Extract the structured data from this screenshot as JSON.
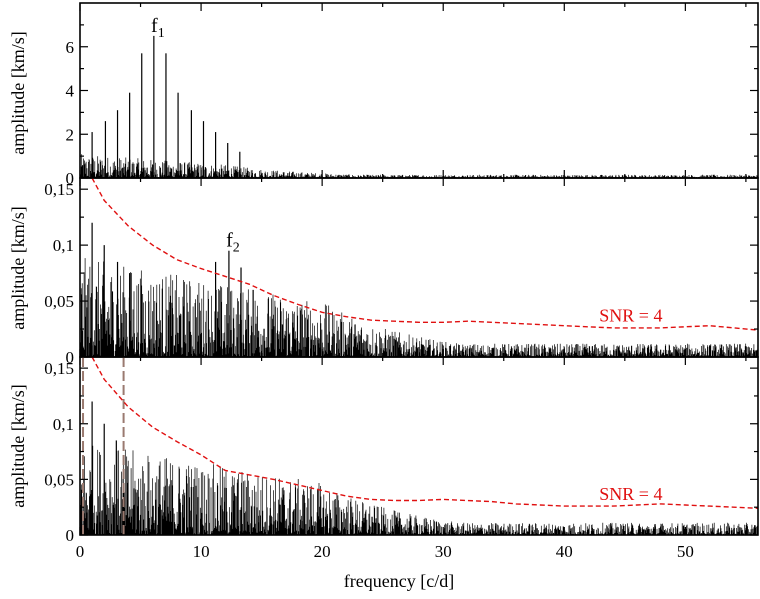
{
  "chart_data": [
    {
      "type": "line",
      "panel": "top",
      "ylabel": "amplitude [km/s]",
      "xlim": [
        0,
        56
      ],
      "ylim": [
        0,
        8
      ],
      "yticks": [
        0,
        2,
        4,
        6
      ],
      "ytick_labels": [
        "0",
        "2",
        "4",
        "6"
      ],
      "noise": {
        "max_amplitude": 1.1,
        "decay_after": 12,
        "floor": 0.15
      },
      "peaks": {
        "x": [
          1.0,
          2.1,
          3.1,
          4.1,
          5.1,
          6.1,
          7.1,
          8.1,
          9.2,
          10.2,
          11.2,
          12.2,
          13.2
        ],
        "y": [
          2.1,
          2.6,
          3.1,
          3.9,
          5.7,
          6.5,
          5.7,
          3.9,
          3.1,
          2.6,
          2.1,
          1.6,
          1.2
        ]
      },
      "annotations": [
        {
          "text": "f",
          "sub": "1",
          "x": 6.1,
          "y": 6.5
        }
      ]
    },
    {
      "type": "line",
      "panel": "middle",
      "ylabel": "amplitude [km/s]",
      "xlim": [
        0,
        56
      ],
      "ylim": [
        0,
        0.16
      ],
      "yticks": [
        0,
        0.05,
        0.1,
        0.15
      ],
      "ytick_labels": [
        "0",
        "0,05",
        "0,1",
        "0,15"
      ],
      "noise": {
        "max_amplitude": 0.09,
        "decay_after": 20,
        "floor": 0.012
      },
      "peaks": {
        "x": [
          1.0,
          2.0,
          3.1,
          4.1,
          11.2,
          12.3,
          13.3,
          14.3
        ],
        "y": [
          0.12,
          0.1,
          0.085,
          0.075,
          0.085,
          0.095,
          0.08,
          0.06
        ]
      },
      "annotations": [
        {
          "text": "f",
          "sub": "2",
          "x": 12.3,
          "y": 0.095
        }
      ],
      "snr_curve": {
        "name": "SNR = 4",
        "color": "#e01010",
        "x": [
          1.0,
          2,
          4,
          6,
          8,
          10,
          12,
          14,
          16,
          18,
          20,
          22,
          24,
          26,
          28,
          30,
          32,
          34,
          36,
          38,
          40,
          42,
          44,
          46,
          48,
          50,
          52,
          54,
          56
        ],
        "y": [
          0.16,
          0.14,
          0.117,
          0.1,
          0.087,
          0.079,
          0.072,
          0.065,
          0.055,
          0.047,
          0.04,
          0.036,
          0.033,
          0.032,
          0.031,
          0.031,
          0.032,
          0.031,
          0.03,
          0.029,
          0.028,
          0.027,
          0.026,
          0.026,
          0.026,
          0.027,
          0.028,
          0.026,
          0.024
        ]
      },
      "snr_label": "SNR = 4"
    },
    {
      "type": "line",
      "panel": "bottom",
      "ylabel": "amplitude [km/s]",
      "xlabel": "frequency [c/d]",
      "xlim": [
        0,
        56
      ],
      "xticks": [
        0,
        10,
        20,
        30,
        40,
        50
      ],
      "xtick_labels": [
        "0",
        "10",
        "20",
        "30",
        "40",
        "50"
      ],
      "ylim": [
        0,
        0.16
      ],
      "yticks": [
        0,
        0.05,
        0.1,
        0.15
      ],
      "ytick_labels": [
        "0",
        "0,05",
        "0,1",
        "0,15"
      ],
      "noise": {
        "max_amplitude": 0.085,
        "decay_after": 20,
        "floor": 0.011
      },
      "peaks": {
        "x": [
          1.0,
          2.0,
          3.0
        ],
        "y": [
          0.12,
          0.1,
          0.085
        ]
      },
      "vlines": {
        "x": [
          0.25,
          3.6
        ],
        "color": "#9a7a70"
      },
      "snr_curve": {
        "name": "SNR = 4",
        "color": "#e01010",
        "x": [
          1.0,
          2,
          4,
          6,
          8,
          10,
          12,
          14,
          16,
          18,
          20,
          22,
          24,
          26,
          28,
          30,
          32,
          34,
          36,
          38,
          40,
          42,
          44,
          46,
          48,
          50,
          52,
          54,
          56
        ],
        "y": [
          0.16,
          0.14,
          0.115,
          0.097,
          0.084,
          0.072,
          0.058,
          0.054,
          0.05,
          0.045,
          0.04,
          0.035,
          0.032,
          0.031,
          0.031,
          0.032,
          0.031,
          0.03,
          0.028,
          0.027,
          0.026,
          0.026,
          0.026,
          0.027,
          0.028,
          0.027,
          0.026,
          0.025,
          0.024
        ]
      },
      "snr_label": "SNR = 4"
    }
  ]
}
